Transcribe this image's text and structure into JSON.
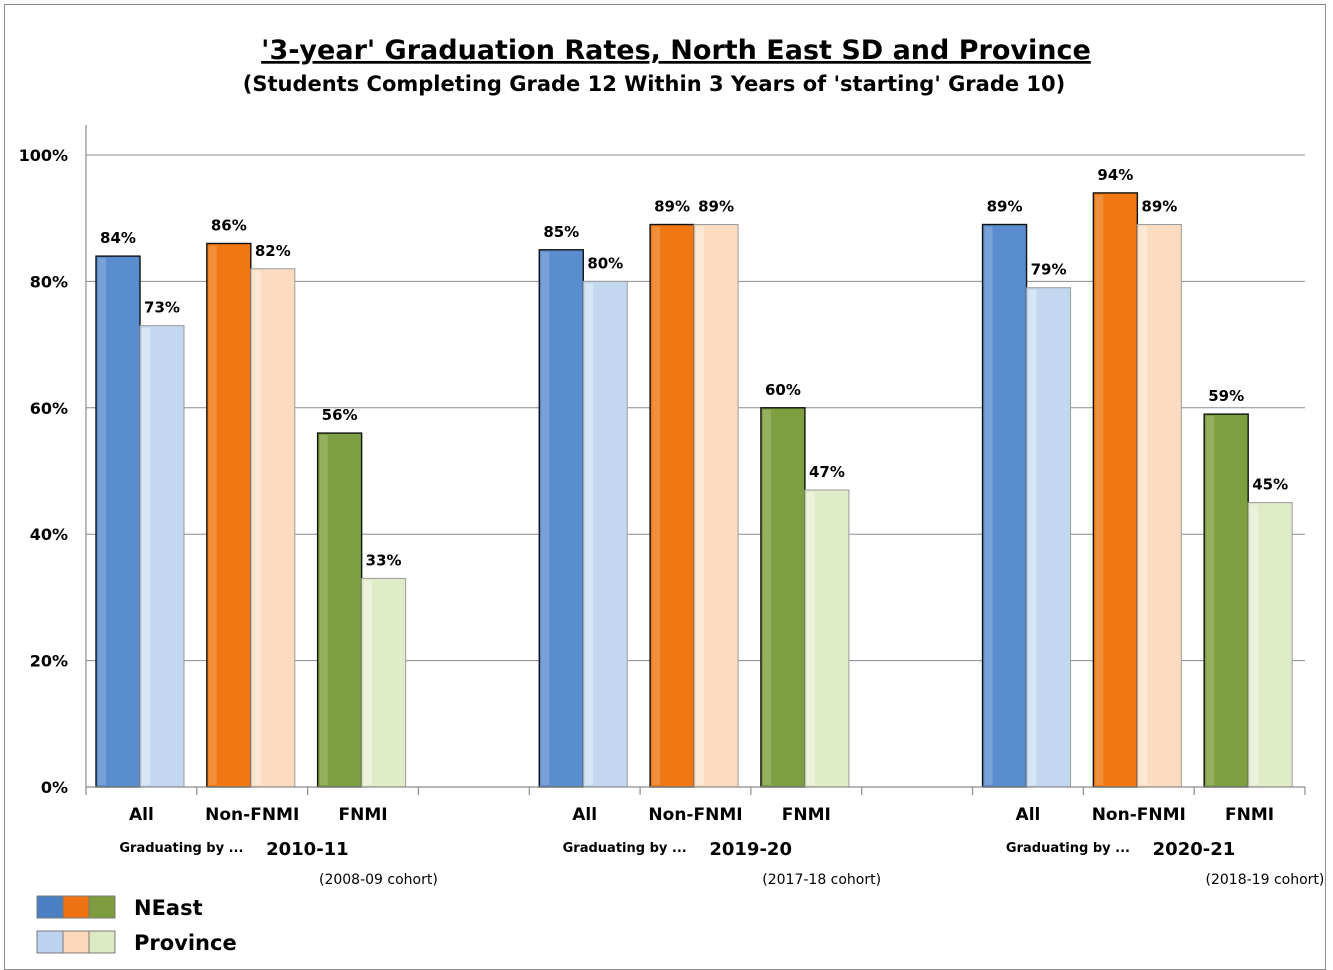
{
  "chart_data": {
    "type": "bar",
    "title": "'3-year' Graduation Rates, North East SD and Province",
    "subtitle": "(Students Completing Grade 12 Within 3 Years of 'starting' Grade 10)",
    "y_ticks": [
      "100%",
      "80%",
      "60%",
      "40%",
      "20%",
      "0%"
    ],
    "ylim": [
      0,
      100
    ],
    "grid": true,
    "categories": [
      "All",
      "Non-FNMI",
      "FNMI"
    ],
    "graduating_label": "Graduating by ...",
    "groups": [
      {
        "year": "2010-11",
        "cohort": "(2008-09 cohort)",
        "neast": [
          84,
          86,
          56
        ],
        "province": [
          73,
          82,
          33
        ],
        "neast_labels": [
          "84%",
          "86%",
          "56%"
        ],
        "province_labels": [
          "73%",
          "82%",
          "33%"
        ]
      },
      {
        "year": "2019-20",
        "cohort": "(2017-18 cohort)",
        "neast": [
          85,
          89,
          60
        ],
        "province": [
          80,
          89,
          47
        ],
        "neast_labels": [
          "85%",
          "89%",
          "60%"
        ],
        "province_labels": [
          "80%",
          "89%",
          "47%"
        ]
      },
      {
        "year": "2020-21",
        "cohort": "(2018-19 cohort)",
        "neast": [
          89,
          94,
          59
        ],
        "province": [
          79,
          89,
          45
        ],
        "neast_labels": [
          "89%",
          "94%",
          "59%"
        ],
        "province_labels": [
          "79%",
          "89%",
          "45%"
        ]
      }
    ],
    "legend": {
      "placement": "bottom-left",
      "entries": [
        {
          "name": "NEast",
          "colors": [
            "#4a7fc4",
            "#ef7213",
            "#7c9c3d"
          ]
        },
        {
          "name": "Province",
          "colors": [
            "#bcd3ef",
            "#fcd9bb",
            "#dde9c2"
          ]
        }
      ]
    },
    "colors": {
      "neast": [
        "#5a8dcf",
        "#f07712",
        "#7d9f3f"
      ],
      "province": [
        "#c3d7f0",
        "#fcdcc0",
        "#e0ebc8"
      ]
    }
  }
}
